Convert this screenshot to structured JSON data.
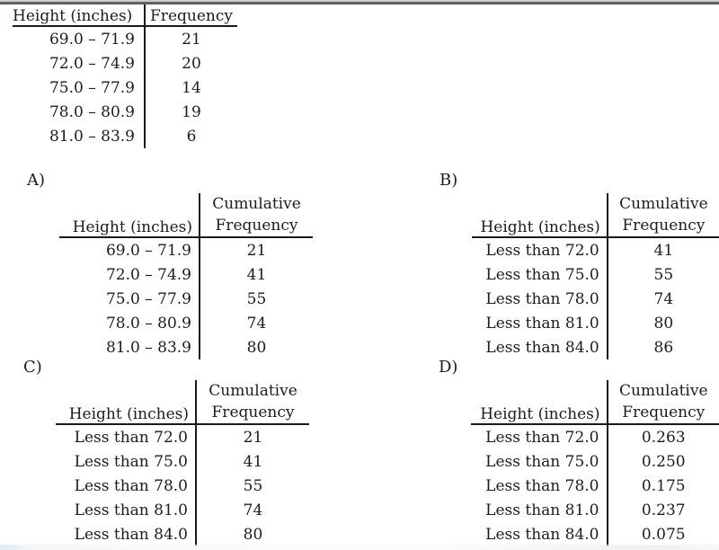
{
  "given_table": {
    "col1_header": "Height (inches)",
    "col2_header": "Frequency",
    "rows": [
      {
        "range": "69.0 – 71.9",
        "value": "21"
      },
      {
        "range": "72.0 – 74.9",
        "value": "20"
      },
      {
        "range": "75.0 – 77.9",
        "value": "14"
      },
      {
        "range": "78.0 – 80.9",
        "value": "19"
      },
      {
        "range": "81.0 – 83.9",
        "value": "6"
      }
    ]
  },
  "options": [
    {
      "label": "A)",
      "col1_header": "Height (inches)",
      "col2_line1": "Cumulative",
      "col2_line2": "Frequency",
      "rows": [
        {
          "range": "69.0 – 71.9",
          "value": "21"
        },
        {
          "range": "72.0 – 74.9",
          "value": "41"
        },
        {
          "range": "75.0 – 77.9",
          "value": "55"
        },
        {
          "range": "78.0 – 80.9",
          "value": "74"
        },
        {
          "range": "81.0 – 83.9",
          "value": "80"
        }
      ]
    },
    {
      "label": "B)",
      "col1_header": "Height (inches)",
      "col2_line1": "Cumulative",
      "col2_line2": "Frequency",
      "rows": [
        {
          "range": "Less than 72.0",
          "value": "41"
        },
        {
          "range": "Less than 75.0",
          "value": "55"
        },
        {
          "range": "Less than 78.0",
          "value": "74"
        },
        {
          "range": "Less than 81.0",
          "value": "80"
        },
        {
          "range": "Less than 84.0",
          "value": "86"
        }
      ]
    },
    {
      "label": "C)",
      "col1_header": "Height (inches)",
      "col2_line1": "Cumulative",
      "col2_line2": "Frequency",
      "rows": [
        {
          "range": "Less than 72.0",
          "value": "21"
        },
        {
          "range": "Less than 75.0",
          "value": "41"
        },
        {
          "range": "Less than 78.0",
          "value": "55"
        },
        {
          "range": "Less than 81.0",
          "value": "74"
        },
        {
          "range": "Less than 84.0",
          "value": "80"
        }
      ]
    },
    {
      "label": "D)",
      "col1_header": "Height (inches)",
      "col2_line1": "Cumulative",
      "col2_line2": "Frequency",
      "rows": [
        {
          "range": "Less than 72.0",
          "value": "0.263"
        },
        {
          "range": "Less than 75.0",
          "value": "0.250"
        },
        {
          "range": "Less than 78.0",
          "value": "0.175"
        },
        {
          "range": "Less than 81.0",
          "value": "0.237"
        },
        {
          "range": "Less than 84.0",
          "value": "0.075"
        }
      ]
    }
  ],
  "colors": {
    "text": "#1c1c1c",
    "rule": "#1a1a1a",
    "topbar_light": "#cdcdcd",
    "topbar_dark": "#606060"
  }
}
